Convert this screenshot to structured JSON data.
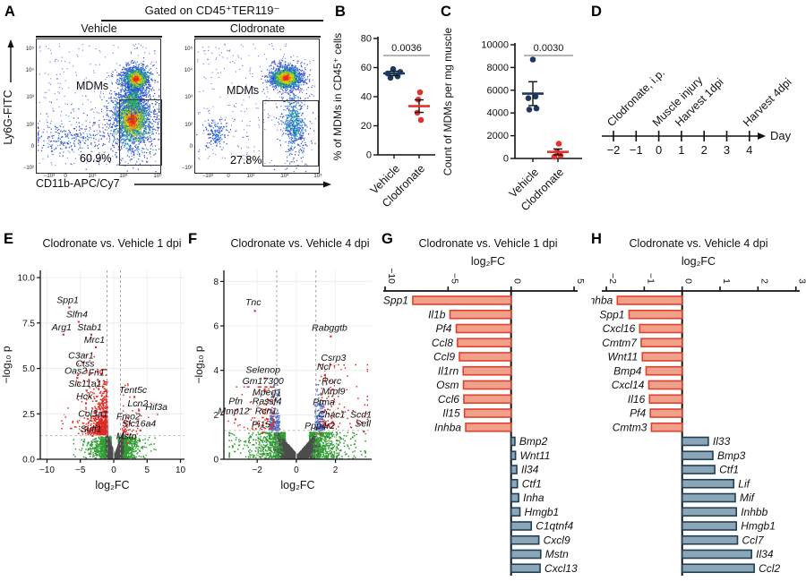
{
  "colors": {
    "navy_point": "#1c3a5e",
    "red_point": "#e2342b",
    "bar_red_fill": "#f0a18c",
    "bar_red_border": "#e2402d",
    "bar_blue_fill": "#8ba6b6",
    "bar_blue_border": "#1e3f56",
    "volcano_red": "#e02a25",
    "volcano_green": "#2f9e33",
    "volcano_gray": "#4d4d4d",
    "volcano_blue": "#4a6bc9"
  },
  "panel_a": {
    "label": "A",
    "header": "Gated on CD45⁺TER119⁻",
    "y_axis_label": "Ly6G-FITC",
    "x_axis_label": "CD11b-APC/Cy7",
    "y_ticks": [
      "10⁵",
      "10⁴",
      "10³",
      "10²",
      "0",
      "−10²"
    ],
    "x_ticks": [
      "−10³",
      "0",
      "10³",
      "10⁴",
      "10⁵"
    ],
    "plots": [
      {
        "title": "Vehicle",
        "gate_label": "MDMs",
        "gate_percent": "60.9%"
      },
      {
        "title": "Clodronate",
        "gate_label": "MDMs",
        "gate_percent": "27.8%"
      }
    ]
  },
  "panel_b": {
    "label": "B",
    "chart_data": {
      "type": "scatter",
      "ylabel": "% of MDMs in CD45⁺ cells",
      "ylim": [
        0,
        80
      ],
      "yticks": [
        0,
        20,
        40,
        60,
        80
      ],
      "p_value": "0.0036",
      "groups": [
        {
          "name": "Vehicle",
          "color": "#1c3a5e",
          "points": [
            53,
            54,
            56,
            57,
            59
          ],
          "mean": 56,
          "sem": 1.5
        },
        {
          "name": "Clodronate",
          "color": "#e2342b",
          "points": [
            24,
            29,
            38,
            43
          ],
          "mean": 33.5,
          "sem": 4.3
        }
      ]
    }
  },
  "panel_c": {
    "label": "C",
    "chart_data": {
      "type": "scatter",
      "ylabel": "Count of MDMs per mg muscle",
      "ylim": [
        0,
        10000
      ],
      "yticks": [
        0,
        2000,
        4000,
        6000,
        8000,
        10000
      ],
      "p_value": "0.0030",
      "groups": [
        {
          "name": "Vehicle",
          "color": "#1c3a5e",
          "points": [
            4300,
            4400,
            5300,
            5450,
            8700
          ],
          "mean": 5700,
          "sem": 1050
        },
        {
          "name": "Clodronate",
          "color": "#e2342b",
          "points": [
            150,
            250,
            600,
            1300
          ],
          "mean": 575,
          "sem": 260
        }
      ]
    }
  },
  "panel_d": {
    "label": "D",
    "axis_label": "Day",
    "days": [
      "−2",
      "−1",
      "0",
      "1",
      "2",
      "3",
      "4"
    ],
    "day_values": [
      -2,
      -1,
      0,
      1,
      2,
      3,
      4
    ],
    "events": [
      {
        "day": -2,
        "label": "Clodronate, i.p."
      },
      {
        "day": 0,
        "label": "Muscle injury"
      },
      {
        "day": 1,
        "label": "Harvest 1dpi"
      },
      {
        "day": 4,
        "label": "Harvest 4dpi"
      }
    ]
  },
  "panel_e": {
    "label": "E",
    "chart_data": {
      "type": "scatter",
      "title": "Clodronate vs. Vehicle 1 dpi",
      "xlabel": "log₂FC",
      "ylabel": "−log₁₀ p",
      "xlim": [
        -11,
        10.6
      ],
      "ylim": [
        0,
        10.4
      ],
      "xticks": [
        -10,
        -5,
        0,
        5,
        10
      ],
      "ytick_labels": [
        "0.0",
        "2.5",
        "5.0",
        "7.5",
        "10.0"
      ],
      "ytick_vals": [
        0,
        2.5,
        5,
        7.5,
        10
      ],
      "vlines": [
        -1,
        1
      ],
      "hline": 1.3,
      "gene_labels": [
        {
          "name": "Spp1",
          "x": -6.9,
          "y": 8.75
        },
        {
          "name": "Slfn4",
          "x": -5.5,
          "y": 7.95
        },
        {
          "name": "Arg1",
          "x": -7.8,
          "y": 7.25
        },
        {
          "name": "Stab1",
          "x": -3.6,
          "y": 7.25
        },
        {
          "name": "Mrc1",
          "x": -2.9,
          "y": 6.55
        },
        {
          "name": "C3ar1",
          "x": -4.9,
          "y": 5.7
        },
        {
          "name": "Ctss",
          "x": -4.3,
          "y": 5.25
        },
        {
          "name": "Oas2",
          "x": -5.7,
          "y": 4.85
        },
        {
          "name": "Fn1",
          "x": -2.6,
          "y": 4.75
        },
        {
          "name": "Slc11a1",
          "x": -4.3,
          "y": 4.15
        },
        {
          "name": "Hck",
          "x": -4.4,
          "y": 3.45
        },
        {
          "name": "Tent5c",
          "x": 2.9,
          "y": 3.8
        },
        {
          "name": "Lcn2",
          "x": 3.6,
          "y": 3.05
        },
        {
          "name": "Hif3a",
          "x": 6.4,
          "y": 2.85
        },
        {
          "name": "Col3a1",
          "x": -3.1,
          "y": 2.5
        },
        {
          "name": "Fmo2",
          "x": 2.2,
          "y": 2.35
        },
        {
          "name": "Slc16a4",
          "x": 3.8,
          "y": 1.95
        },
        {
          "name": "Sulf1",
          "x": -3.4,
          "y": 1.65
        },
        {
          "name": "Mstn",
          "x": 1.9,
          "y": 1.25
        }
      ]
    }
  },
  "panel_f": {
    "label": "F",
    "chart_data": {
      "type": "scatter",
      "title": "Clodronate vs. Vehicle 4 dpi",
      "xlabel": "log₂FC",
      "ylabel": "−log₁₀ p",
      "xlim": [
        -3.7,
        3.85
      ],
      "ylim": [
        0,
        8.5
      ],
      "xticks": [
        -2,
        0,
        2
      ],
      "ytick_labels": [
        "0",
        "2",
        "4",
        "6",
        "8"
      ],
      "ytick_vals": [
        0,
        2,
        4,
        6,
        8
      ],
      "vlines": [
        -1,
        1
      ],
      "hline": 1.3,
      "gene_labels": [
        {
          "name": "Tnc",
          "x": -2.2,
          "y": 7.05
        },
        {
          "name": "Rabggtb",
          "x": 1.7,
          "y": 5.9
        },
        {
          "name": "Csrp3",
          "x": 1.9,
          "y": 4.55
        },
        {
          "name": "Ncl",
          "x": 1.4,
          "y": 4.15
        },
        {
          "name": "Selenop",
          "x": -1.7,
          "y": 4.0
        },
        {
          "name": "Gm17300",
          "x": -1.7,
          "y": 3.5
        },
        {
          "name": "Rorc",
          "x": 1.8,
          "y": 3.5
        },
        {
          "name": "Mpeg1",
          "x": -1.5,
          "y": 3.0
        },
        {
          "name": "Mrpl9",
          "x": 1.9,
          "y": 3.05
        },
        {
          "name": "Ptn",
          "x": -3.1,
          "y": 2.6
        },
        {
          "name": "Rassf4",
          "x": -1.5,
          "y": 2.6
        },
        {
          "name": "Ptma",
          "x": 1.4,
          "y": 2.55
        },
        {
          "name": "Mmp12",
          "x": -3.2,
          "y": 2.15
        },
        {
          "name": "Rcn1",
          "x": -1.55,
          "y": 2.15
        },
        {
          "name": "Chac1",
          "x": 1.8,
          "y": 2.0
        },
        {
          "name": "Scd1",
          "x": 3.3,
          "y": 2.0
        },
        {
          "name": "Pi15",
          "x": -1.8,
          "y": 1.55
        },
        {
          "name": "Ppp4r2",
          "x": 1.2,
          "y": 1.5
        },
        {
          "name": "Sell",
          "x": 3.4,
          "y": 1.6
        }
      ]
    }
  },
  "panel_g": {
    "label": "G",
    "chart_data": {
      "type": "bar",
      "title": "Clodronate vs. Vehicle 1 dpi",
      "axis_label": "log₂FC",
      "xlim": [
        -10,
        5
      ],
      "xticks": [
        -10,
        -5,
        0,
        5
      ],
      "bars": [
        {
          "gene": "Spp1",
          "value": -7.8
        },
        {
          "gene": "Il1b",
          "value": -4.85
        },
        {
          "gene": "Pf4",
          "value": -4.35
        },
        {
          "gene": "Ccl8",
          "value": -4.25
        },
        {
          "gene": "Ccl9",
          "value": -4.1
        },
        {
          "gene": "Il1rn",
          "value": -3.8
        },
        {
          "gene": "Osm",
          "value": -3.78
        },
        {
          "gene": "Ccl6",
          "value": -3.75
        },
        {
          "gene": "Il15",
          "value": -3.7
        },
        {
          "gene": "Inhba",
          "value": -3.6
        },
        {
          "gene": "Bmp2",
          "value": 0.3
        },
        {
          "gene": "Wnt11",
          "value": 0.35
        },
        {
          "gene": "Il34",
          "value": 0.45
        },
        {
          "gene": "Ctf1",
          "value": 0.5
        },
        {
          "gene": "Inha",
          "value": 0.6
        },
        {
          "gene": "Hmgb1",
          "value": 0.7
        },
        {
          "gene": "C1qtnf4",
          "value": 1.6
        },
        {
          "gene": "Cxcl9",
          "value": 2.2
        },
        {
          "gene": "Mstn",
          "value": 2.35
        },
        {
          "gene": "Cxcl13",
          "value": 2.3
        }
      ]
    }
  },
  "panel_h": {
    "label": "H",
    "chart_data": {
      "type": "bar",
      "title": "Clodronate vs. Vehicle 4 dpi",
      "axis_label": "log₂FC",
      "xlim": [
        -2,
        3
      ],
      "xticks": [
        -2,
        -1,
        0,
        1,
        2,
        3
      ],
      "bars": [
        {
          "gene": "Inhba",
          "value": -1.71
        },
        {
          "gene": "Spp1",
          "value": -1.4
        },
        {
          "gene": "Cxcl16",
          "value": -1.12
        },
        {
          "gene": "Cmtm7",
          "value": -1.08
        },
        {
          "gene": "Wnt11",
          "value": -1.05
        },
        {
          "gene": "Bmp4",
          "value": -0.95
        },
        {
          "gene": "Cxcl14",
          "value": -0.88
        },
        {
          "gene": "Il16",
          "value": -0.86
        },
        {
          "gene": "Pf4",
          "value": -0.84
        },
        {
          "gene": "Cmtm3",
          "value": -0.81
        },
        {
          "gene": "Il33",
          "value": 0.69
        },
        {
          "gene": "Bmp3",
          "value": 0.81
        },
        {
          "gene": "Ctf1",
          "value": 0.86
        },
        {
          "gene": "Lif",
          "value": 1.36
        },
        {
          "gene": "Mif",
          "value": 1.4
        },
        {
          "gene": "Inhbb",
          "value": 1.43
        },
        {
          "gene": "Hmgb1",
          "value": 1.43
        },
        {
          "gene": "Ccl7",
          "value": 1.46
        },
        {
          "gene": "Il34",
          "value": 1.83
        },
        {
          "gene": "Ccl2",
          "value": 1.9
        }
      ]
    }
  }
}
